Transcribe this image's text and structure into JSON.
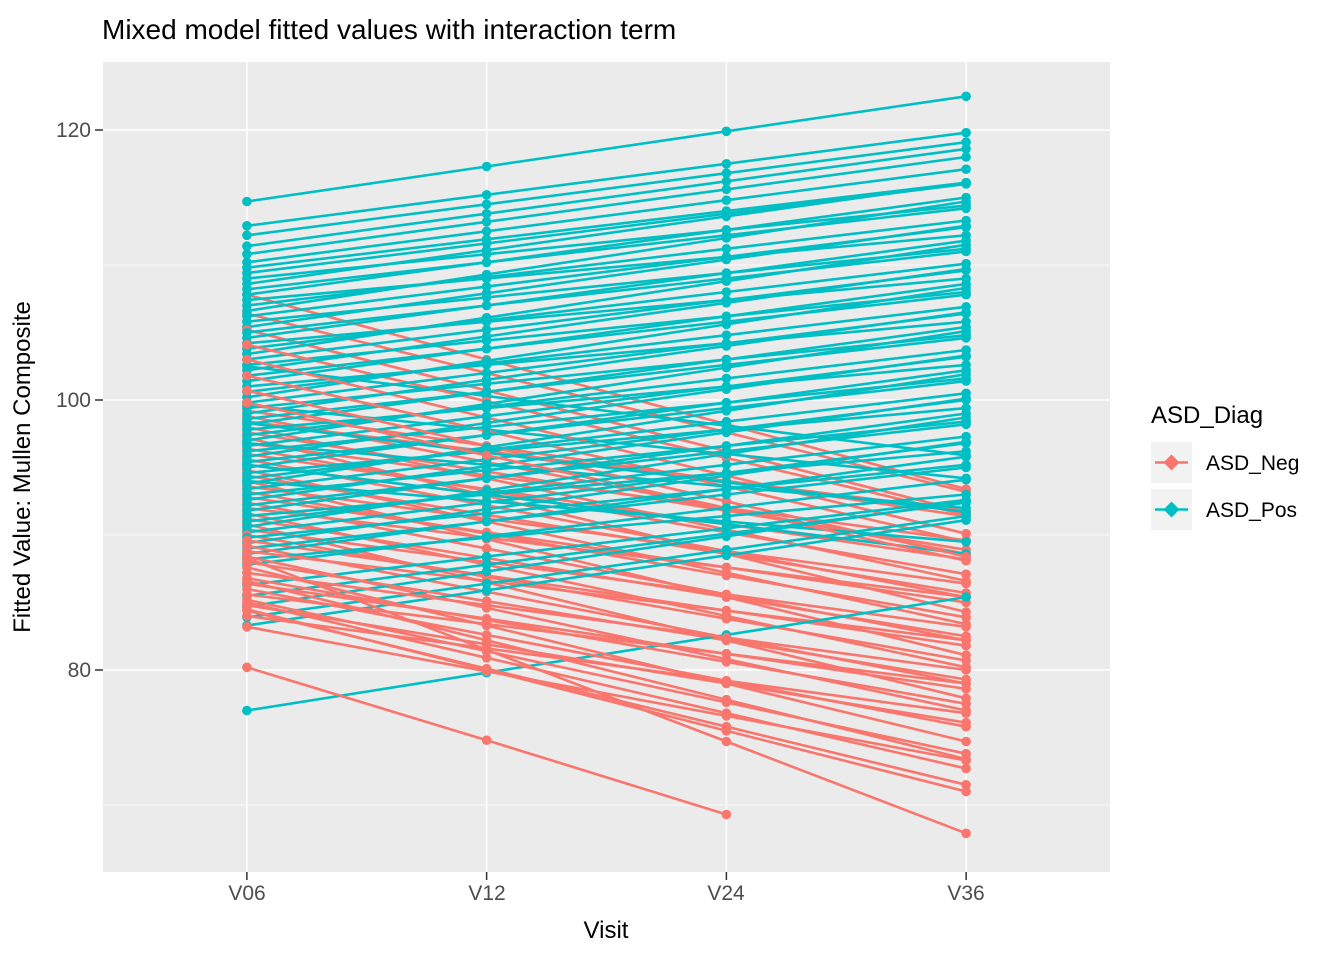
{
  "title": "Mixed model fitted values with interaction term",
  "axes": {
    "x": {
      "label": "Visit",
      "ticks": [
        "V06",
        "V12",
        "V24",
        "V36"
      ]
    },
    "y": {
      "label": "Fitted Value: Mullen Composite",
      "ticks": [
        "80",
        "100",
        "120"
      ]
    }
  },
  "legend": {
    "title": "ASD_Diag",
    "entries": [
      {
        "label": "ASD_Neg",
        "color": "#F8766D"
      },
      {
        "label": "ASD_Pos",
        "color": "#00BFC4"
      }
    ]
  },
  "colors": {
    "panel_bg": "#EBEBEB",
    "grid": "#FFFFFF",
    "legend_key_bg": "#F2F2F2",
    "tick_mark": "#333333",
    "tick_text": "#4D4D4D"
  },
  "chart_data": {
    "type": "line",
    "title": "Mixed model fitted values with interaction term",
    "xlabel": "Visit",
    "ylabel": "Fitted Value: Mullen Composite",
    "x": [
      "V06",
      "V12",
      "V24",
      "V36"
    ],
    "ylim": [
      65,
      125
    ],
    "y_major_gridlines": [
      80,
      100,
      120
    ],
    "y_minor_gridlines": [
      70,
      90,
      110
    ],
    "grid": true,
    "legend_position": "right",
    "description": "Per-subject mixed-model fitted trajectories (one straight line per subject across visits V06-V36); ASD_Pos lines mostly rise, ASD_Neg lines mostly fall; values estimated from plot",
    "series": [
      {
        "name": "ASD_Neg",
        "color": "#F8766D",
        "subjects": [
          [
            99.2,
            96.6,
            94.0,
            91.4
          ],
          [
            107.8,
            103.0,
            98.2,
            93.4
          ],
          [
            98.8,
            95.4,
            92.0,
            88.6
          ],
          [
            98.4,
            96.2,
            94.0,
            91.8
          ],
          [
            98.0,
            94.2,
            90.4,
            86.6
          ],
          [
            106.4,
            102.0,
            97.6,
            93.2
          ],
          [
            97.6,
            94.7,
            91.8,
            88.9
          ],
          [
            97.2,
            92.9,
            88.6,
            84.3
          ],
          [
            96.8,
            94.4,
            92.0,
            89.6
          ],
          [
            105.2,
            100.7,
            96.2,
            91.7
          ],
          [
            96.4,
            93.3,
            90.2,
            87.1
          ],
          [
            96.0,
            93.4,
            90.8,
            88.2
          ],
          [
            95.6,
            92.2,
            88.8,
            85.4
          ],
          [
            104.1,
            99.9,
            95.7,
            91.5
          ],
          [
            95.2,
            93.0,
            90.8,
            88.6
          ],
          [
            94.8,
            91.0,
            87.2,
            83.4
          ],
          [
            94.4,
            91.5,
            88.6,
            85.7
          ],
          [
            103.0,
            98.7,
            94.4,
            90.1
          ],
          [
            94.0,
            89.7,
            85.4,
            81.1
          ],
          [
            93.6,
            91.2,
            88.8,
            86.4
          ],
          [
            93.2,
            90.1,
            87.0,
            83.9
          ],
          [
            101.8,
            97.7,
            93.6,
            89.5
          ],
          [
            92.8,
            90.2,
            87.6,
            85.0
          ],
          [
            92.4,
            89.0,
            85.6,
            82.2
          ],
          [
            92.0,
            89.8,
            87.6,
            85.4
          ],
          [
            100.7,
            96.6,
            92.5,
            88.4
          ],
          [
            91.6,
            87.8,
            84.0,
            80.2
          ],
          [
            91.2,
            88.3,
            85.4,
            82.5
          ],
          [
            90.8,
            86.5,
            82.2,
            77.9
          ],
          [
            99.8,
            95.9,
            92.0,
            88.1
          ],
          [
            90.4,
            88.0,
            85.6,
            83.2
          ],
          [
            90.0,
            86.9,
            83.8,
            80.7
          ],
          [
            89.6,
            87.0,
            84.4,
            81.8
          ],
          [
            89.2,
            85.8,
            82.4,
            79.0
          ],
          [
            88.8,
            86.6,
            84.4,
            82.2
          ],
          [
            88.4,
            84.6,
            80.8,
            77.0
          ],
          [
            88.0,
            85.1,
            82.2,
            79.3
          ],
          [
            87.6,
            83.3,
            79.0,
            74.7
          ],
          [
            87.2,
            84.8,
            82.4,
            80.0
          ],
          [
            86.8,
            83.7,
            80.6,
            77.5
          ],
          [
            86.4,
            83.8,
            81.2,
            78.6
          ],
          [
            86.0,
            82.6,
            79.2,
            75.8
          ],
          [
            85.6,
            83.4,
            81.2,
            79.0
          ],
          [
            85.2,
            81.4,
            77.6,
            73.8
          ],
          [
            84.8,
            81.9,
            79.0,
            76.1
          ],
          [
            84.4,
            80.1,
            75.8,
            71.5
          ],
          [
            84.0,
            81.6,
            79.2,
            76.8
          ],
          [
            88.3,
            81.5,
            74.7,
            67.9
          ],
          [
            86.6,
            82.2,
            77.8,
            73.4
          ],
          [
            85.0,
            80.9,
            76.8,
            72.7
          ],
          [
            84.5,
            80.0,
            75.5,
            71.0
          ],
          [
            80.2,
            74.8,
            69.3,
            null
          ],
          [
            83.2,
            79.9,
            76.6,
            73.3
          ]
        ]
      },
      {
        "name": "ASD_Pos",
        "color": "#00BFC4",
        "subjects": [
          [
            114.7,
            117.3,
            119.9,
            122.5
          ],
          [
            112.9,
            115.2,
            117.5,
            119.8
          ],
          [
            112.2,
            114.5,
            116.8,
            119.1
          ],
          [
            111.4,
            113.8,
            116.2,
            118.6
          ],
          [
            110.8,
            113.2,
            115.6,
            118.0
          ],
          [
            110.2,
            112.5,
            114.8,
            117.1
          ],
          [
            109.8,
            111.9,
            114.0,
            116.1
          ],
          [
            109.4,
            111.6,
            113.8,
            116.0
          ],
          [
            109.0,
            110.8,
            112.6,
            114.4
          ],
          [
            108.6,
            111.1,
            113.6,
            116.1
          ],
          [
            108.2,
            110.2,
            112.2,
            114.2
          ],
          [
            107.8,
            110.2,
            112.6,
            115.0
          ],
          [
            107.4,
            109.0,
            110.6,
            112.2
          ],
          [
            107.0,
            109.1,
            111.2,
            113.3
          ],
          [
            106.6,
            109.3,
            112.0,
            114.7
          ],
          [
            106.2,
            108.4,
            110.6,
            112.8
          ],
          [
            105.8,
            107.6,
            109.4,
            111.2
          ],
          [
            105.4,
            107.9,
            110.4,
            112.9
          ],
          [
            105.0,
            107.0,
            109.0,
            111.0
          ],
          [
            104.6,
            107.0,
            109.4,
            111.8
          ],
          [
            104.2,
            105.8,
            107.4,
            109.0
          ],
          [
            103.8,
            105.9,
            108.0,
            110.1
          ],
          [
            103.4,
            106.1,
            108.8,
            111.5
          ],
          [
            103.0,
            105.2,
            107.4,
            109.6
          ],
          [
            102.5,
            100.3,
            98.1,
            95.9
          ],
          [
            102.6,
            104.4,
            106.2,
            108.0
          ],
          [
            102.2,
            104.7,
            107.2,
            109.7
          ],
          [
            101.8,
            103.8,
            105.8,
            107.8
          ],
          [
            101.4,
            103.8,
            106.2,
            108.6
          ],
          [
            101.0,
            102.6,
            104.2,
            105.8
          ],
          [
            100.6,
            102.7,
            104.8,
            106.9
          ],
          [
            100.2,
            102.9,
            105.6,
            108.3
          ],
          [
            99.8,
            102.0,
            104.2,
            106.4
          ],
          [
            99.6,
            97.8,
            96.0,
            94.2
          ],
          [
            99.4,
            101.2,
            103.0,
            104.8
          ],
          [
            99.0,
            101.5,
            104.0,
            106.5
          ],
          [
            98.6,
            100.6,
            102.6,
            104.6
          ],
          [
            98.3,
            96.1,
            93.9,
            91.7
          ],
          [
            98.2,
            100.6,
            103.0,
            105.4
          ],
          [
            97.8,
            99.4,
            101.0,
            102.6
          ],
          [
            97.4,
            99.5,
            101.6,
            103.7
          ],
          [
            97.0,
            99.7,
            102.4,
            105.1
          ],
          [
            96.8,
            95.2,
            93.6,
            92.0
          ],
          [
            96.6,
            98.8,
            101.0,
            103.2
          ],
          [
            96.2,
            98.0,
            99.8,
            101.6
          ],
          [
            95.8,
            98.3,
            100.8,
            103.3
          ],
          [
            95.4,
            97.4,
            99.4,
            101.4
          ],
          [
            95.2,
            93.0,
            90.8,
            88.6
          ],
          [
            95.0,
            97.4,
            99.8,
            102.2
          ],
          [
            94.6,
            96.2,
            97.8,
            99.4
          ],
          [
            94.2,
            96.3,
            98.4,
            100.5
          ],
          [
            94.0,
            92.5,
            91.0,
            89.5
          ],
          [
            93.8,
            96.5,
            99.2,
            101.9
          ],
          [
            93.4,
            95.6,
            97.8,
            100.0
          ],
          [
            93.0,
            94.8,
            96.6,
            98.4
          ],
          [
            92.6,
            95.1,
            97.6,
            100.1
          ],
          [
            92.2,
            94.2,
            96.2,
            98.2
          ],
          [
            91.8,
            94.2,
            96.6,
            99.0
          ],
          [
            91.4,
            93.0,
            94.6,
            96.2
          ],
          [
            91.0,
            93.1,
            95.2,
            97.3
          ],
          [
            90.6,
            93.3,
            96.0,
            98.7
          ],
          [
            90.2,
            92.4,
            94.6,
            96.8
          ],
          [
            89.8,
            91.6,
            93.4,
            95.2
          ],
          [
            89.4,
            91.9,
            94.4,
            96.9
          ],
          [
            89.0,
            91.0,
            93.0,
            95.0
          ],
          [
            88.6,
            91.0,
            93.4,
            95.8
          ],
          [
            88.2,
            89.8,
            91.4,
            93.0
          ],
          [
            87.8,
            89.9,
            92.0,
            94.1
          ],
          [
            86.3,
            88.4,
            90.5,
            92.6
          ],
          [
            85.5,
            87.8,
            90.1,
            92.4
          ],
          [
            84.7,
            87.3,
            89.9,
            92.5
          ],
          [
            83.9,
            86.4,
            88.9,
            91.4
          ],
          [
            83.3,
            85.9,
            88.5,
            91.1
          ],
          [
            77.0,
            79.8,
            82.6,
            85.4
          ]
        ]
      }
    ]
  }
}
